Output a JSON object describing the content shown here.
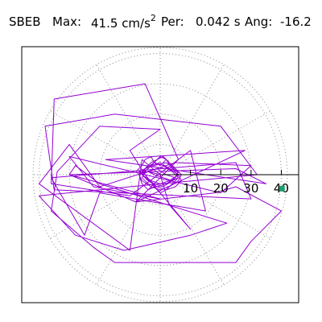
{
  "header": {
    "station": "SBEB",
    "max_label": "Max:",
    "max_value": "41.5",
    "max_unit": "cm/s",
    "max_unit_exp": "2",
    "per_label": "Per:",
    "per_value": "0.042",
    "per_unit": "s",
    "ang_label": "Ang:",
    "ang_value": "-16.2"
  },
  "chart_data": {
    "type": "scatter",
    "title": "SBEB Max: 41.5 cm/s2 Per: 0.042 s Ang: -16.2",
    "xlabel": "",
    "ylabel": "",
    "projection": "polar",
    "rlim": [
      0,
      42
    ],
    "r_ticks": [
      10,
      20,
      30,
      40
    ],
    "r_tick_labels": [
      "10",
      "20",
      "30",
      "40"
    ],
    "grid": "dotted",
    "series": [
      {
        "color": "#9400d3",
        "x": [
          0,
          -6,
          -10,
          -40,
          -30,
          -20,
          5,
          30,
          20,
          -30,
          -22,
          0,
          -30,
          25,
          35,
          -18,
          28,
          -8,
          6,
          -5,
          -35,
          -36,
          -10,
          10,
          15,
          -20,
          -25,
          -36,
          25,
          30,
          -35,
          -38,
          -15,
          20,
          32,
          -10,
          -40,
          -28,
          -12,
          10,
          22,
          -20,
          -28,
          -30,
          -8,
          18,
          25,
          40,
          30,
          25,
          -15,
          -22,
          -36,
          -34,
          -20,
          0,
          -10,
          -5,
          10,
          3,
          0
        ],
        "y": [
          0,
          5,
          -25,
          -3,
          10,
          -4,
          4,
          3,
          -6,
          6,
          -4,
          -8,
          0,
          2,
          -3,
          5,
          8,
          -9,
          5,
          30,
          25,
          -3,
          -7,
          8,
          -12,
          -6,
          -20,
          -1,
          4,
          -8,
          -5,
          16,
          20,
          16,
          0,
          -4,
          -7,
          -20,
          -25,
          -20,
          -16,
          -3,
          3,
          0,
          -9,
          -6,
          -4,
          -12,
          -22,
          -29,
          -29,
          -24,
          -12,
          1,
          16,
          15,
          8,
          0,
          -18,
          -10,
          0
        ]
      },
      {
        "color": "#9400d3",
        "x": [
          -8,
          -6,
          -5,
          -3,
          -2,
          0,
          2,
          4,
          5,
          6,
          4,
          2,
          0,
          -2,
          -4,
          -6,
          -7,
          -5,
          -3,
          -1,
          1,
          3,
          5,
          7,
          6,
          3,
          0,
          -3,
          -6,
          -7,
          -4,
          -2,
          0,
          2,
          4,
          6,
          5,
          2,
          -1,
          -4,
          -6,
          -5,
          -3,
          0,
          3,
          6,
          7,
          5,
          2,
          -1,
          -4,
          -6,
          -5,
          -2,
          1,
          4,
          6,
          4,
          1,
          -2,
          -5,
          -7,
          -5,
          -2,
          2,
          5,
          6,
          3,
          0,
          -3,
          -6,
          -4,
          -1,
          2,
          5,
          4,
          1,
          -2,
          -4,
          0
        ],
        "y": [
          1,
          3,
          5,
          6,
          4,
          6,
          5,
          3,
          1,
          -1,
          -3,
          -5,
          -6,
          -4,
          -5,
          -3,
          0,
          2,
          4,
          5,
          6,
          4,
          2,
          0,
          -2,
          -4,
          -5,
          -4,
          -2,
          0,
          2,
          4,
          3,
          5,
          2,
          1,
          -1,
          -3,
          -4,
          -3,
          -1,
          1,
          3,
          4,
          2,
          0,
          -2,
          -4,
          -5,
          -4,
          -2,
          0,
          2,
          4,
          3,
          1,
          -1,
          -2,
          -4,
          -3,
          -1,
          1,
          2,
          3,
          4,
          2,
          0,
          -2,
          -3,
          -2,
          0,
          1,
          2,
          0,
          -1,
          -2,
          -1,
          0,
          1,
          0
        ]
      }
    ],
    "markers": [
      {
        "x": 40.2,
        "y": -4.6,
        "color": "#1e9e6e",
        "shape": "square"
      }
    ]
  }
}
